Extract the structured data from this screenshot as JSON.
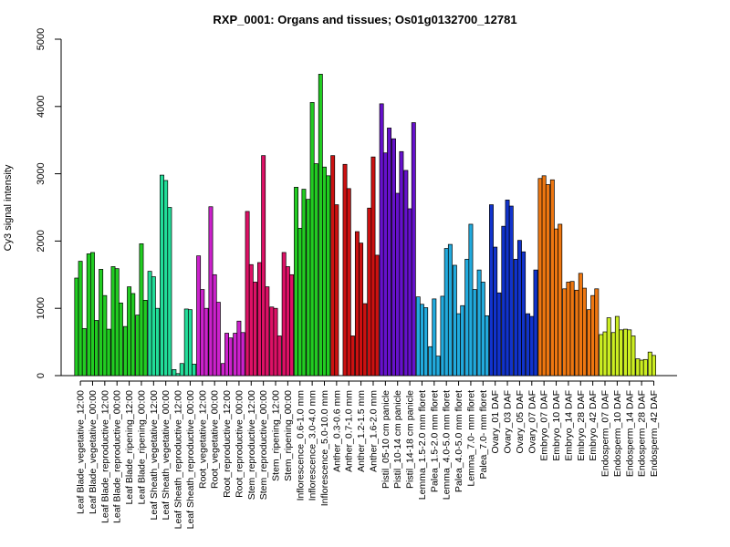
{
  "chart_data": {
    "type": "bar",
    "title": "RXP_0001: Organs and tissues; Os01g0132700_12781",
    "xlabel": "",
    "ylabel": "Cy3 signal intensity",
    "ylim": [
      0,
      5000
    ],
    "yticks": [
      0,
      1000,
      2000,
      3000,
      4000,
      5000
    ],
    "grid": false,
    "categories": [
      "Leaf Blade_vegetative_12:00",
      "Leaf Blade_vegetative_00:00",
      "Leaf Blade_reproductive_12:00",
      "Leaf Blade_reproductive_00:00",
      "Leaf Blade_ripening_12:00",
      "Leaf Blade_ripening_00:00",
      "Leaf Sheath_vegetative_12:00",
      "Leaf Sheath_vegetative_00:00",
      "Leaf Sheath_reproductive_12:00",
      "Leaf Sheath_reproductive_00:00",
      "Root_vegetative_12:00",
      "Root_vegetative_00:00",
      "Root_reproductive_12:00",
      "Root_reproductive_00:00",
      "Stem_reproductive_12:00",
      "Stem_reproductive_00:00",
      "Stem_ripening_12:00",
      "Stem_ripening_00:00",
      "Inflorescence_0.6-1.0 mm",
      "Inflorescence_3.0-4.0 mm",
      "Inflorescence_5.0-10.0 mm",
      "Anther_0.3-0.6 mm",
      "Anther_0.7-1.0 mm",
      "Anther_1.2-1.5 mm",
      "Anther_1.6-2.0 mm",
      "Pistil_05-10 cm panicle",
      "Pistil_10-14 cm panicle",
      "Pistil_14-18 cm panicle",
      "Lemma_1.5-2.0 mm floret",
      "Palea_1.5-2.0 mm floret",
      "Lemma_4.0-5.0 mm floret",
      "Palea_4.0-5.0 mm floret",
      "Lemma_7.0- mm floret",
      "Palea_7.0- mm floret",
      "Ovary_01 DAF",
      "Ovary_03 DAF",
      "Ovary_05 DAF",
      "Ovary_07 DAF",
      "Embryo_07 DAF",
      "Embryo_10 DAF",
      "Embryo_14 DAF",
      "Embryo_28 DAF",
      "Embryo_42 DAF",
      "Endosperm_07 DAF",
      "Endosperm_10 DAF",
      "Endosperm_14 DAF",
      "Endosperm_28 DAF",
      "Endosperm_42 DAF"
    ],
    "group_colors": [
      "#22cc22",
      "#22cc22",
      "#22cc22",
      "#22cc22",
      "#22cc22",
      "#22cc22",
      "#22dd99",
      "#22dd99",
      "#22dd99",
      "#22dd99",
      "#cc22cc",
      "#cc22cc",
      "#cc22cc",
      "#cc22cc",
      "#dd1166",
      "#dd1166",
      "#dd1166",
      "#dd1166",
      "#22cc22",
      "#22cc22",
      "#22cc22",
      "#cc1111",
      "#cc1111",
      "#cc1111",
      "#cc1111",
      "#6611cc",
      "#6611cc",
      "#6611cc",
      "#22aadd",
      "#22aadd",
      "#22aadd",
      "#22aadd",
      "#22aadd",
      "#22aadd",
      "#1133cc",
      "#1133cc",
      "#1133cc",
      "#1133cc",
      "#ee7711",
      "#ee7711",
      "#ee7711",
      "#ee7711",
      "#ee7711",
      "#ccee22",
      "#ccee22",
      "#ccee22",
      "#ccee22",
      "#ccee22"
    ],
    "values": [
      [
        1450,
        1700,
        700
      ],
      [
        1810,
        1830,
        820
      ],
      [
        1580,
        1190,
        690
      ],
      [
        1620,
        1590,
        1080
      ],
      [
        730,
        1320,
        1220
      ],
      [
        900,
        1960,
        1120
      ],
      [
        1550,
        1470,
        1000
      ],
      [
        2980,
        2900,
        2500
      ],
      [
        90,
        30,
        180
      ],
      [
        990,
        980,
        170
      ],
      [
        1780,
        1280,
        1000
      ],
      [
        2510,
        1500,
        1090
      ],
      [
        180,
        630,
        560
      ],
      [
        630,
        810,
        640
      ],
      [
        2440,
        1650,
        1390
      ],
      [
        1680,
        3270,
        1320
      ],
      [
        1020,
        1000,
        590
      ],
      [
        1830,
        1620,
        1500
      ],
      [
        2800,
        2190,
        2770
      ],
      [
        2620,
        4060,
        3150
      ],
      [
        4480,
        3100,
        2970
      ],
      [
        3270,
        2540,
        0
      ],
      [
        3140,
        2780,
        590
      ],
      [
        2140,
        1970,
        1070
      ],
      [
        2490,
        3250,
        1790
      ],
      [
        4040,
        3310,
        3680
      ],
      [
        3520,
        2710,
        3330
      ],
      [
        3050,
        2480,
        3760
      ],
      [
        1170,
        1060,
        1010
      ],
      [
        430,
        1140,
        290
      ],
      [
        1180,
        1890,
        1950
      ],
      [
        1640,
        920,
        1040
      ],
      [
        1730,
        2250,
        1280
      ],
      [
        1570,
        1390,
        890
      ],
      [
        2540,
        1910,
        1230
      ],
      [
        2220,
        2610,
        2520
      ],
      [
        1730,
        2010,
        1840
      ],
      [
        920,
        880,
        1570
      ],
      [
        2930,
        2970,
        2840
      ],
      [
        2910,
        2180,
        2250
      ],
      [
        1290,
        1390,
        1400
      ],
      [
        1270,
        1520,
        1300
      ],
      [
        980,
        1190,
        1290
      ],
      [
        610,
        650,
        860
      ],
      [
        640,
        880,
        680
      ],
      [
        690,
        680,
        590
      ],
      [
        250,
        230,
        240
      ],
      [
        350,
        300,
        0
      ]
    ]
  }
}
